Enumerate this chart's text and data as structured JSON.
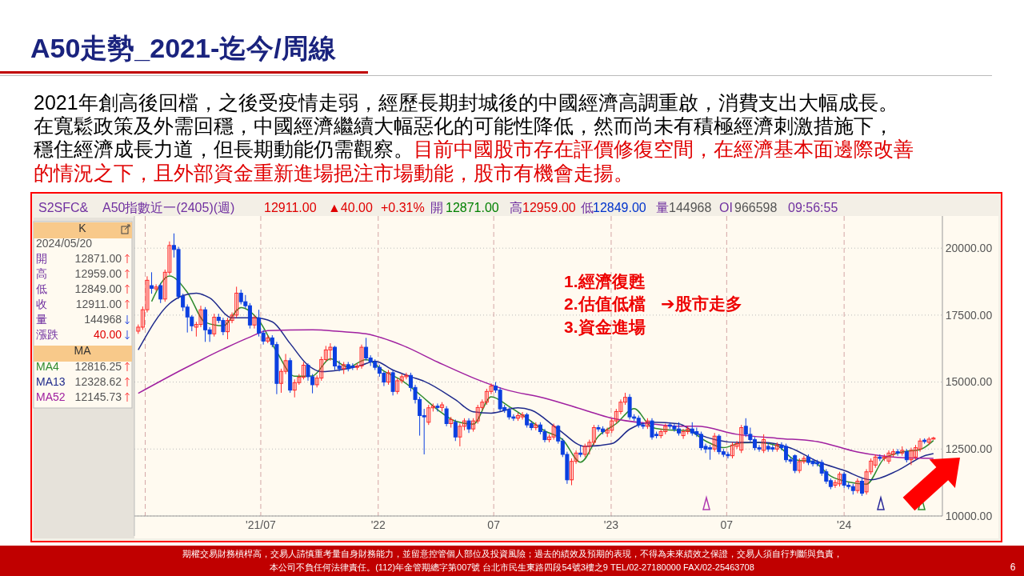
{
  "chart_data": {
    "type": "candlestick",
    "title": "A50走勢_2021-迄今/周線",
    "x": [
      "2020-12-21",
      "2020-12-28",
      "2021-01-04",
      "2021-01-11",
      "2021-01-18",
      "2021-01-25",
      "2021-02-01",
      "2021-02-08",
      "2021-02-15",
      "2021-02-22",
      "2021-03-01",
      "2021-03-08",
      "2021-03-15",
      "2021-03-22",
      "2021-03-29",
      "2021-04-05",
      "2021-04-12",
      "2021-04-19",
      "2021-04-26",
      "2021-05-03",
      "2021-05-10",
      "2021-05-17",
      "2021-05-24",
      "2021-05-31",
      "2021-06-07",
      "2021-06-14",
      "2021-06-21",
      "2021-06-28",
      "2021-07-05",
      "2021-07-12",
      "2021-07-19",
      "2021-07-26",
      "2021-08-02",
      "2021-08-09",
      "2021-08-16",
      "2021-08-23",
      "2021-08-30",
      "2021-09-06",
      "2021-09-13",
      "2021-09-20",
      "2021-09-27",
      "2021-10-04",
      "2021-10-11",
      "2021-10-18",
      "2021-10-25",
      "2021-11-01",
      "2021-11-08",
      "2021-11-15",
      "2021-11-22",
      "2021-11-29",
      "2021-12-06",
      "2021-12-13",
      "2021-12-20",
      "2021-12-27",
      "2022-01-03",
      "2022-01-10",
      "2022-01-17",
      "2022-01-24",
      "2022-01-31",
      "2022-02-07",
      "2022-02-14",
      "2022-02-21",
      "2022-02-28",
      "2022-03-07",
      "2022-03-14",
      "2022-03-21",
      "2022-03-28",
      "2022-04-04",
      "2022-04-11",
      "2022-04-18",
      "2022-04-25",
      "2022-05-02",
      "2022-05-09",
      "2022-05-16",
      "2022-05-23",
      "2022-05-30",
      "2022-06-06",
      "2022-06-13",
      "2022-06-20",
      "2022-06-27",
      "2022-07-04",
      "2022-07-11",
      "2022-07-18",
      "2022-07-25",
      "2022-08-01",
      "2022-08-08",
      "2022-08-15",
      "2022-08-22",
      "2022-08-29",
      "2022-09-05",
      "2022-09-12",
      "2022-09-19",
      "2022-09-26",
      "2022-10-03",
      "2022-10-10",
      "2022-10-17",
      "2022-10-24",
      "2022-10-31",
      "2022-11-07",
      "2022-11-14",
      "2022-11-21",
      "2022-11-28",
      "2022-12-05",
      "2022-12-12",
      "2022-12-19",
      "2022-12-26",
      "2023-01-02",
      "2023-01-09",
      "2023-01-16",
      "2023-01-23",
      "2023-01-30",
      "2023-02-06",
      "2023-02-13",
      "2023-02-20",
      "2023-02-27",
      "2023-03-06",
      "2023-03-13",
      "2023-03-20",
      "2023-03-27",
      "2023-04-03",
      "2023-04-10",
      "2023-04-17",
      "2023-04-24",
      "2023-05-01",
      "2023-05-08",
      "2023-05-15",
      "2023-05-22",
      "2023-05-29",
      "2023-06-05",
      "2023-06-12",
      "2023-06-19",
      "2023-06-26",
      "2023-07-03",
      "2023-07-10",
      "2023-07-17",
      "2023-07-24",
      "2023-07-31",
      "2023-08-07",
      "2023-08-14",
      "2023-08-21",
      "2023-08-28",
      "2023-09-04",
      "2023-09-11",
      "2023-09-18",
      "2023-09-25",
      "2023-10-02",
      "2023-10-09",
      "2023-10-16",
      "2023-10-23",
      "2023-10-30",
      "2023-11-06",
      "2023-11-13",
      "2023-11-20",
      "2023-11-27",
      "2023-12-04",
      "2023-12-11",
      "2023-12-18",
      "2023-12-25",
      "2024-01-01",
      "2024-01-08",
      "2024-01-15",
      "2024-01-22",
      "2024-01-29",
      "2024-02-05",
      "2024-02-12",
      "2024-02-19",
      "2024-02-26",
      "2024-03-04",
      "2024-03-11",
      "2024-03-18",
      "2024-03-25",
      "2024-04-01",
      "2024-04-08",
      "2024-04-15",
      "2024-04-22",
      "2024-04-29",
      "2024-05-06",
      "2024-05-13",
      "2024-05-20"
    ],
    "ohlc": [
      [
        16900,
        17150,
        16800,
        17050
      ],
      [
        17050,
        17820,
        16950,
        17700
      ],
      [
        17700,
        18950,
        17600,
        18800
      ],
      [
        18600,
        19100,
        18300,
        18500
      ],
      [
        18480,
        18650,
        18400,
        18550
      ],
      [
        18600,
        18700,
        17950,
        18100
      ],
      [
        18100,
        19200,
        18000,
        19100
      ],
      [
        19100,
        20250,
        19000,
        20100
      ],
      [
        20100,
        20550,
        19650,
        19950
      ],
      [
        19950,
        20050,
        18100,
        18200
      ],
      [
        18200,
        18300,
        17650,
        17800
      ],
      [
        17800,
        17900,
        16850,
        17430
      ],
      [
        17430,
        17500,
        16900,
        17100
      ],
      [
        17050,
        17250,
        16700,
        17150
      ],
      [
        17150,
        17850,
        17050,
        17700
      ],
      [
        17700,
        17800,
        16500,
        16950
      ],
      [
        16950,
        17050,
        16500,
        16800
      ],
      [
        16800,
        17550,
        16700,
        17420
      ],
      [
        17420,
        17550,
        17200,
        17300
      ],
      [
        17300,
        17400,
        16750,
        16880
      ],
      [
        16880,
        17400,
        16600,
        17300
      ],
      [
        17300,
        17600,
        17200,
        17500
      ],
      [
        17500,
        18560,
        17400,
        18320
      ],
      [
        18320,
        18450,
        17900,
        18000
      ],
      [
        18000,
        18250,
        17750,
        17850
      ],
      [
        17850,
        17950,
        17000,
        17130
      ],
      [
        17130,
        17500,
        17000,
        17400
      ],
      [
        17400,
        17700,
        16700,
        16830
      ],
      [
        16830,
        16950,
        16400,
        16530
      ],
      [
        16530,
        16750,
        16450,
        16650
      ],
      [
        16650,
        16750,
        16300,
        16400
      ],
      [
        16400,
        16500,
        14550,
        14950
      ],
      [
        14950,
        15500,
        14600,
        15400
      ],
      [
        15400,
        16050,
        15300,
        15800
      ],
      [
        15800,
        15900,
        14600,
        14700
      ],
      [
        14700,
        15100,
        14430,
        14980
      ],
      [
        14980,
        15300,
        14900,
        15180
      ],
      [
        15180,
        15750,
        15100,
        15630
      ],
      [
        15630,
        15700,
        15050,
        15200
      ],
      [
        15200,
        15300,
        14580,
        14900
      ],
      [
        14900,
        15250,
        14800,
        15150
      ],
      [
        15150,
        15950,
        15050,
        15840
      ],
      [
        15840,
        16350,
        15750,
        16200
      ],
      [
        16200,
        16450,
        15800,
        16300
      ],
      [
        16300,
        16350,
        15450,
        15600
      ],
      [
        15600,
        15800,
        15400,
        15500
      ],
      [
        15500,
        15750,
        15300,
        15650
      ],
      [
        15650,
        15750,
        15400,
        15500
      ],
      [
        15600,
        15700,
        15450,
        15550
      ],
      [
        15550,
        15700,
        15450,
        15600
      ],
      [
        15600,
        16400,
        15500,
        16300
      ],
      [
        16300,
        16650,
        15800,
        15900
      ],
      [
        15900,
        16000,
        15600,
        15750
      ],
      [
        15750,
        15850,
        15450,
        15550
      ],
      [
        15550,
        15650,
        15200,
        15330
      ],
      [
        15330,
        15400,
        14850,
        15000
      ],
      [
        15000,
        15450,
        14900,
        15350
      ],
      [
        15350,
        15450,
        14500,
        14650
      ],
      [
        14650,
        15150,
        14550,
        15050
      ],
      [
        15050,
        15300,
        14950,
        15200
      ],
      [
        15200,
        15350,
        15100,
        15250
      ],
      [
        15250,
        15350,
        14650,
        14800
      ],
      [
        14800,
        14900,
        14200,
        14350
      ],
      [
        14350,
        14450,
        13000,
        13750
      ],
      [
        13750,
        14000,
        12300,
        13700
      ],
      [
        13500,
        14150,
        13400,
        14040
      ],
      [
        14040,
        14200,
        13900,
        14100
      ],
      [
        14100,
        14200,
        13900,
        14050
      ],
      [
        14050,
        14250,
        13900,
        14150
      ],
      [
        14000,
        14100,
        13350,
        13450
      ],
      [
        13450,
        13700,
        13300,
        13600
      ],
      [
        13500,
        13600,
        12800,
        12950
      ],
      [
        12950,
        13450,
        12600,
        13350
      ],
      [
        13350,
        13650,
        13200,
        13550
      ],
      [
        13550,
        13650,
        13100,
        13250
      ],
      [
        13250,
        13650,
        13150,
        13550
      ],
      [
        13550,
        14150,
        13450,
        14050
      ],
      [
        14050,
        14350,
        13950,
        14250
      ],
      [
        14250,
        14750,
        14150,
        14650
      ],
      [
        14650,
        14950,
        14550,
        14850
      ],
      [
        14850,
        15000,
        14600,
        14700
      ],
      [
        14700,
        14800,
        13900,
        14000
      ],
      [
        14050,
        14150,
        13850,
        13950
      ],
      [
        13950,
        14050,
        13600,
        13700
      ],
      [
        13700,
        13800,
        13550,
        13650
      ],
      [
        13650,
        13850,
        13550,
        13750
      ],
      [
        13700,
        13880,
        13600,
        13780
      ],
      [
        13780,
        13850,
        13300,
        13400
      ],
      [
        13450,
        13550,
        13200,
        13300
      ],
      [
        13300,
        13500,
        13200,
        13400
      ],
      [
        13400,
        13500,
        13050,
        13150
      ],
      [
        13150,
        13250,
        12750,
        12850
      ],
      [
        12850,
        13050,
        12750,
        12950
      ],
      [
        12950,
        13450,
        12850,
        13350
      ],
      [
        13350,
        13400,
        12700,
        12800
      ],
      [
        12800,
        12900,
        12200,
        12300
      ],
      [
        12300,
        12400,
        11200,
        11350
      ],
      [
        11350,
        12150,
        11150,
        12040
      ],
      [
        12040,
        12450,
        11950,
        12350
      ],
      [
        12350,
        12650,
        12200,
        12300
      ],
      [
        12300,
        12700,
        12200,
        12600
      ],
      [
        12600,
        12850,
        12300,
        12750
      ],
      [
        12750,
        13400,
        12650,
        13300
      ],
      [
        13300,
        13400,
        13150,
        13250
      ],
      [
        13250,
        13350,
        13050,
        13150
      ],
      [
        13100,
        13300,
        12950,
        13200
      ],
      [
        13200,
        13650,
        13100,
        13550
      ],
      [
        13550,
        14000,
        13450,
        13900
      ],
      [
        13900,
        14350,
        13800,
        14250
      ],
      [
        14250,
        14600,
        14150,
        14430
      ],
      [
        14430,
        14550,
        13600,
        13700
      ],
      [
        13700,
        13800,
        13550,
        13650
      ],
      [
        13650,
        13750,
        13300,
        13400
      ],
      [
        13400,
        13500,
        13250,
        13350
      ],
      [
        13350,
        13650,
        13250,
        13550
      ],
      [
        13550,
        13650,
        12850,
        12950
      ],
      [
        13050,
        13150,
        12900,
        13000
      ],
      [
        13000,
        13250,
        12900,
        13150
      ],
      [
        13150,
        13450,
        13050,
        13350
      ],
      [
        13400,
        13500,
        13250,
        13350
      ],
      [
        13350,
        13450,
        13150,
        13250
      ],
      [
        13250,
        13500,
        13000,
        13100
      ],
      [
        13000,
        13250,
        12880,
        13150
      ],
      [
        13150,
        13350,
        13050,
        13250
      ],
      [
        13250,
        13500,
        13000,
        13100
      ],
      [
        13150,
        13300,
        12950,
        13050
      ],
      [
        13050,
        13150,
        12450,
        12550
      ],
      [
        12600,
        12700,
        12350,
        12500
      ],
      [
        12550,
        12650,
        12100,
        12500
      ],
      [
        12500,
        13100,
        12400,
        12980
      ],
      [
        12980,
        13050,
        12300,
        12400
      ],
      [
        12400,
        12500,
        12200,
        12300
      ],
      [
        12300,
        12400,
        12150,
        12250
      ],
      [
        12250,
        12750,
        12150,
        12650
      ],
      [
        12600,
        12800,
        12500,
        12700
      ],
      [
        12460,
        13400,
        12350,
        13300
      ],
      [
        13350,
        13650,
        12950,
        13050
      ],
      [
        13050,
        13300,
        12750,
        12850
      ],
      [
        12850,
        12950,
        12450,
        12550
      ],
      [
        12550,
        12650,
        12400,
        12500
      ],
      [
        12450,
        13050,
        12350,
        12850
      ],
      [
        12600,
        12750,
        12400,
        12500
      ],
      [
        12550,
        12650,
        12400,
        12500
      ],
      [
        12500,
        12750,
        12400,
        12650
      ],
      [
        12650,
        12750,
        12450,
        12550
      ],
      [
        12600,
        12700,
        12000,
        12100
      ],
      [
        12100,
        12200,
        11950,
        12050
      ],
      [
        12250,
        12300,
        11600,
        11700
      ],
      [
        11700,
        12150,
        11600,
        12030
      ],
      [
        12030,
        12250,
        11950,
        12150
      ],
      [
        12200,
        12300,
        11900,
        12000
      ],
      [
        12050,
        12150,
        11850,
        11950
      ],
      [
        12000,
        12100,
        11850,
        11950
      ],
      [
        12000,
        12100,
        11500,
        11600
      ],
      [
        11650,
        11750,
        11200,
        11300
      ],
      [
        11320,
        11400,
        11000,
        11100
      ],
      [
        11150,
        11350,
        11050,
        11250
      ],
      [
        11200,
        11650,
        11100,
        11560
      ],
      [
        11560,
        11650,
        11050,
        11150
      ],
      [
        11150,
        11250,
        11000,
        11100
      ],
      [
        11100,
        11200,
        10800,
        10950
      ],
      [
        10950,
        11400,
        10850,
        11300
      ],
      [
        11300,
        11400,
        10750,
        10850
      ],
      [
        10900,
        11750,
        10800,
        11650
      ],
      [
        11650,
        12150,
        11550,
        12050
      ],
      [
        11900,
        12300,
        11800,
        12200
      ],
      [
        12200,
        12300,
        12050,
        12150
      ],
      [
        12150,
        12300,
        12050,
        12200
      ],
      [
        12050,
        12450,
        11950,
        12350
      ],
      [
        12300,
        12500,
        12200,
        12400
      ],
      [
        12400,
        12500,
        12250,
        12350
      ],
      [
        12350,
        12600,
        12250,
        12450
      ],
      [
        12400,
        12500,
        12000,
        12100
      ],
      [
        12100,
        12550,
        11900,
        12450
      ],
      [
        12200,
        12650,
        12100,
        12550
      ],
      [
        12500,
        12900,
        12400,
        12800
      ],
      [
        12830,
        12900,
        12700,
        12780
      ],
      [
        12750,
        12950,
        12650,
        12870
      ],
      [
        12871,
        12959,
        12849,
        12911
      ]
    ],
    "series": [
      {
        "name": "MA4",
        "type": "line",
        "color": "#2e8b2e",
        "x": [
          "2021-01-11",
          "2021-02-08",
          "2021-03-08",
          "2021-04-05",
          "2021-05-03",
          "2021-05-31",
          "2021-06-28",
          "2021-07-26",
          "2021-08-23",
          "2021-09-20",
          "2021-10-18",
          "2021-11-15",
          "2021-12-13",
          "2022-01-10",
          "2022-02-07",
          "2022-03-07",
          "2022-04-04",
          "2022-05-02",
          "2022-05-30",
          "2022-06-27",
          "2022-07-25",
          "2022-08-22",
          "2022-09-19",
          "2022-10-17",
          "2022-11-14",
          "2022-12-12",
          "2023-01-09",
          "2023-02-06",
          "2023-03-06",
          "2023-04-03",
          "2023-05-01",
          "2023-05-29",
          "2023-06-26",
          "2023-07-24",
          "2023-08-21",
          "2023-09-18",
          "2023-10-16",
          "2023-11-13",
          "2023-12-11",
          "2024-01-08",
          "2024-02-05",
          "2024-03-04",
          "2024-04-01",
          "2024-04-29",
          "2024-05-20"
        ],
        "values": [
          18010,
          18960,
          18350,
          17230,
          17100,
          17780,
          17300,
          16130,
          15220,
          15230,
          15870,
          15560,
          15840,
          15410,
          15060,
          14540,
          13970,
          13540,
          13430,
          14450,
          14090,
          13650,
          13180,
          12850,
          12010,
          12980,
          13450,
          14010,
          13310,
          13210,
          13190,
          12800,
          12550,
          12730,
          12740,
          12630,
          12100,
          12030,
          11490,
          11270,
          11190,
          12150,
          12390,
          12480,
          12820
        ]
      },
      {
        "name": "MA13",
        "type": "line",
        "color": "#1f2a8c",
        "x": [
          "2020-12-21",
          "2021-02-08",
          "2021-03-01",
          "2021-03-22",
          "2021-04-12",
          "2021-05-17",
          "2021-06-21",
          "2021-07-19",
          "2021-08-16",
          "2021-09-13",
          "2021-10-04",
          "2021-11-01",
          "2021-12-06",
          "2021-12-27",
          "2022-01-24",
          "2022-02-21",
          "2022-03-14",
          "2022-05-02",
          "2022-05-30",
          "2022-06-27",
          "2022-08-08",
          "2022-08-29",
          "2022-10-10",
          "2022-11-21",
          "2023-01-02",
          "2023-01-30",
          "2023-03-06",
          "2023-04-17",
          "2023-05-15",
          "2023-07-17",
          "2023-08-28",
          "2023-10-09",
          "2023-11-20",
          "2024-01-01",
          "2024-02-12",
          "2024-03-25",
          "2024-05-06",
          "2024-05-20"
        ],
        "values": [
          16200,
          17930,
          18230,
          18320,
          18140,
          17400,
          17400,
          17250,
          16440,
          15630,
          15390,
          15450,
          15630,
          15780,
          15450,
          15200,
          15030,
          14340,
          13890,
          13840,
          14040,
          13950,
          13240,
          12600,
          12700,
          13240,
          13500,
          13440,
          13080,
          12750,
          12750,
          12540,
          12040,
          11700,
          11350,
          11700,
          12250,
          12330
        ]
      },
      {
        "name": "MA52",
        "type": "line",
        "color": "#a020a0",
        "x": [
          "2020-12-21",
          "2021-03-01",
          "2021-05-03",
          "2021-06-14",
          "2021-07-12",
          "2021-09-20",
          "2021-11-01",
          "2021-12-13",
          "2022-02-07",
          "2022-04-04",
          "2022-06-06",
          "2022-07-18",
          "2022-09-19",
          "2022-11-21",
          "2023-01-02",
          "2023-03-06",
          "2023-04-17",
          "2023-05-15",
          "2023-07-17",
          "2023-09-18",
          "2023-11-20",
          "2024-01-22",
          "2024-03-25",
          "2024-05-20"
        ],
        "values": [
          14580,
          15480,
          16230,
          16680,
          16920,
          16950,
          16890,
          16800,
          16380,
          15750,
          15090,
          14730,
          14400,
          13950,
          13650,
          13440,
          13350,
          13350,
          13050,
          12900,
          12780,
          12390,
          12190,
          12150
        ]
      }
    ],
    "xlim": [
      "2020-12-15",
      "2024-06-03"
    ],
    "xticks": [
      {
        "value": "2021-01-01",
        "label": null
      },
      {
        "value": "2021-07-01",
        "label": "'21/07"
      },
      {
        "value": "2022-01-01",
        "label": "'22"
      },
      {
        "value": "2022-07-01",
        "label": "07"
      },
      {
        "value": "2023-01-01",
        "label": "'23"
      },
      {
        "value": "2023-07-01",
        "label": "07"
      },
      {
        "value": "2024-01-01",
        "label": "'24"
      }
    ],
    "ylim": [
      10000,
      21200
    ],
    "yticks": [
      {
        "value": 10000,
        "label": "10000.00"
      },
      {
        "value": 12500,
        "label": "12500.00"
      },
      {
        "value": 15000,
        "label": "15000.00"
      },
      {
        "value": 17500,
        "label": "17500.00"
      },
      {
        "value": 20000,
        "label": "20000.00"
      }
    ],
    "grid": true,
    "legend": "left",
    "annotations": [
      "2021年創高後回檔，之後受疫情走弱，經歷長期封城後的中國經濟高調重啟，消費支出大幅成長。",
      "在寬鬆政策及外需回穩，中國經濟繼續大幅惡化的可能性降低，然而尚未有積極經濟刺激措施下，",
      "穩住經濟成長力道，但長期動能仍需觀察。",
      "目前中國股市存在評價修復空間，在經濟基本面邊際改善",
      "的情況之下，且外部資金重新進場挹注市場動能，股市有機會走揚。",
      "S2SFC&",
      "A50指數近一(2405)(週)",
      "12911.00",
      "▲40.00",
      "+0.31%",
      "開",
      "12871.00",
      "高",
      "12959.00",
      "低",
      "12849.00",
      "量",
      "144968",
      "OI",
      "966598",
      "09:56:55",
      "K",
      "2024/05/20",
      "開",
      "12871.00",
      "高",
      "12959.00",
      "低",
      "12849.00",
      "收",
      "12911.00",
      "量",
      "144968",
      "漲跌",
      "40.00",
      "MA",
      "12816.25",
      "12328.62",
      "12145.73",
      "1.經濟復甦",
      "2.估值低檔",
      "➔股市走多",
      "3.資金進場",
      "期權交易財務槓桿高，交易人請慎重考量自身財務能力，並留意控管個人部位及投資風險；過去的績效及預期的表現，不得為未來績效之保證，交易人須自行判斷與負責，",
      "本公司不負任何法律責任。(112)年金管期總字第007號  台北市民生東路四段54號3樓之9  TEL/02-27180000  FAX/02-25463708",
      "6"
    ]
  }
}
